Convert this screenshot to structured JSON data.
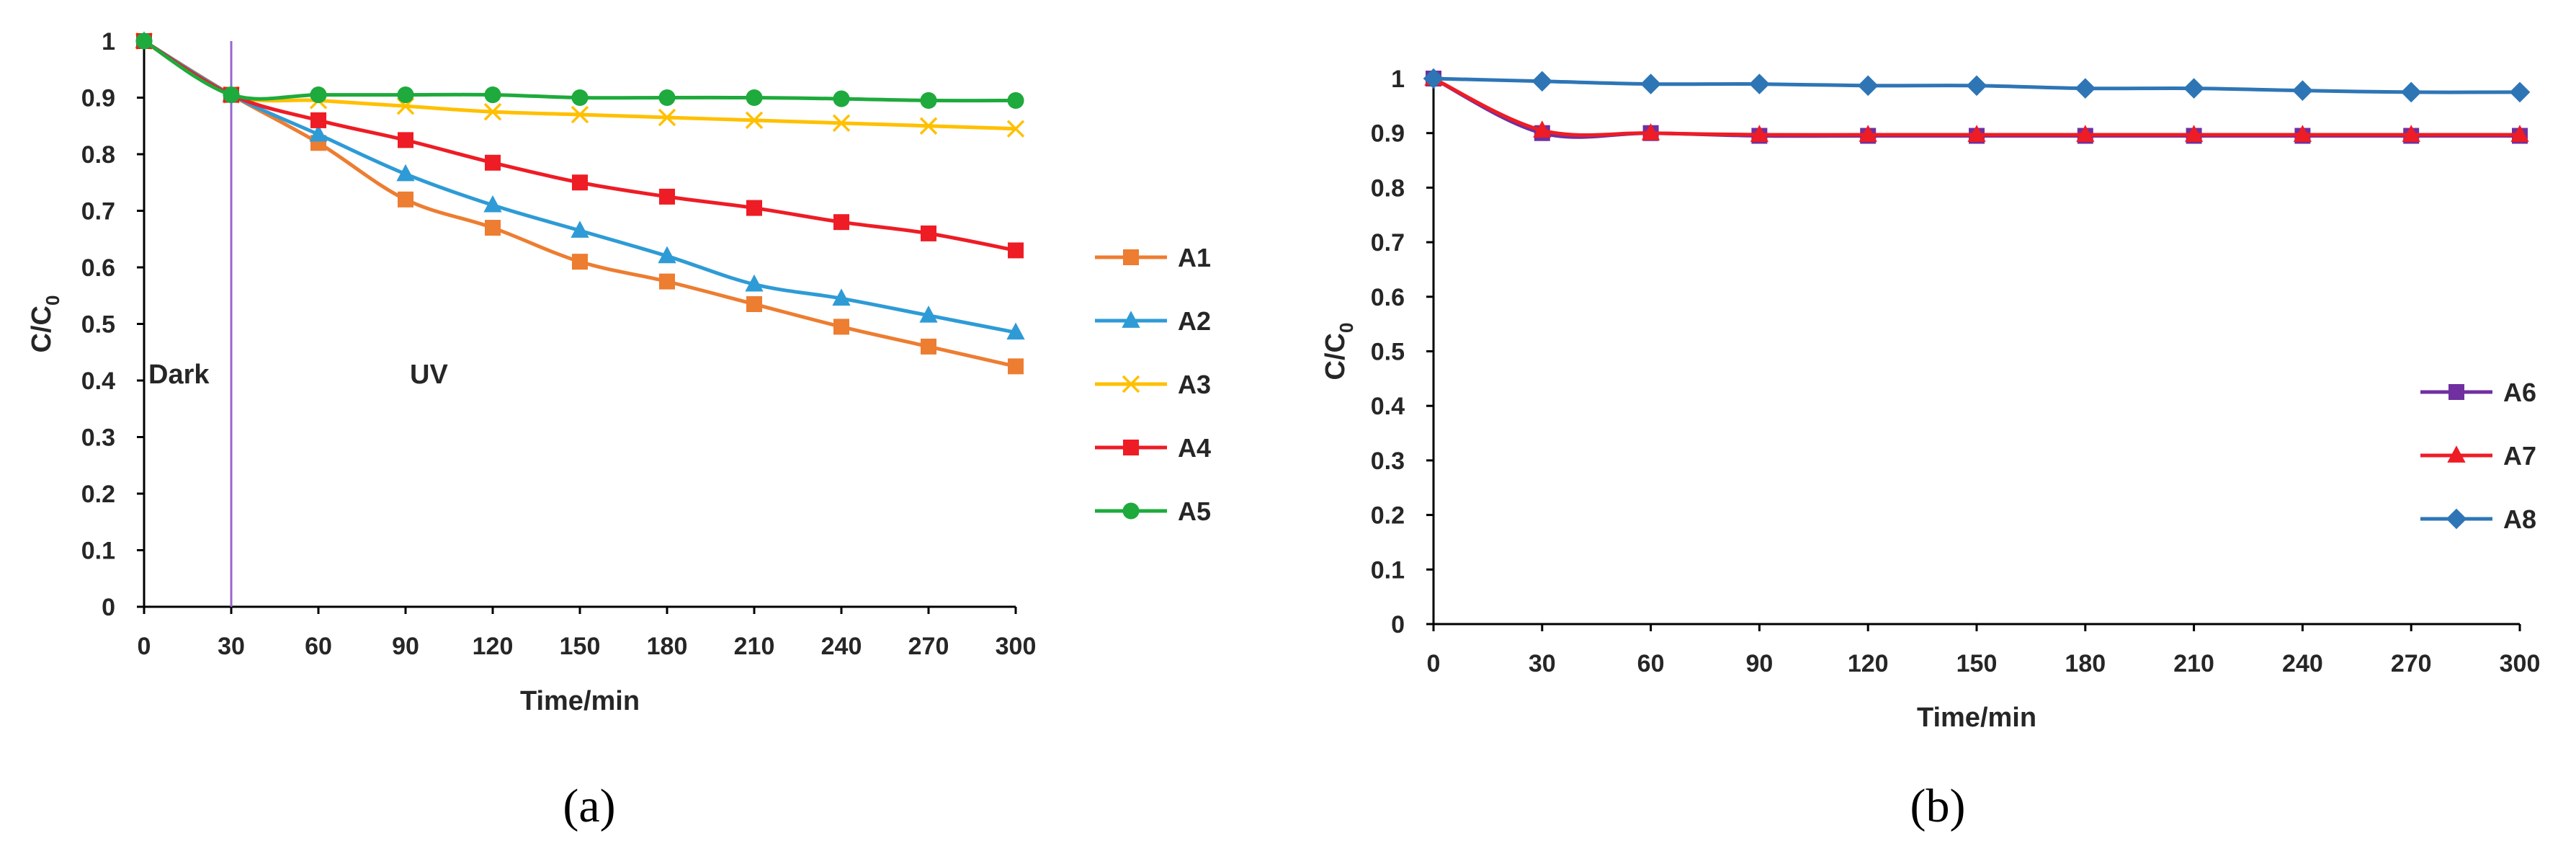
{
  "figure": {
    "panels": [
      {
        "id": "a",
        "caption": "(a)"
      },
      {
        "id": "b",
        "caption": "(b)"
      }
    ]
  },
  "chart_data": [
    {
      "type": "line",
      "panel": "a",
      "title": "",
      "xlabel": "Time/min",
      "ylabel": "C/C0",
      "ylabel_main": "C/C",
      "ylabel_sub": "0",
      "x": [
        0,
        30,
        60,
        90,
        120,
        150,
        180,
        210,
        240,
        270,
        300
      ],
      "xlim": [
        0,
        300
      ],
      "ylim": [
        0,
        1
      ],
      "yticks": [
        "0",
        "0.1",
        "0.2",
        "0.3",
        "0.4",
        "0.5",
        "0.6",
        "0.7",
        "0.8",
        "0.9",
        "1"
      ],
      "xticks": [
        "0",
        "30",
        "60",
        "90",
        "120",
        "150",
        "180",
        "210",
        "240",
        "270",
        "300"
      ],
      "grid": false,
      "legend_position": "right",
      "vline": {
        "x": 30,
        "color": "#9966CC"
      },
      "annotations": [
        {
          "text": "Dark",
          "x": 0,
          "y": 0.41
        },
        {
          "text": "UV",
          "x": 90,
          "y": 0.41
        }
      ],
      "series": [
        {
          "name": "A1",
          "color": "#ED7D31",
          "marker": "square",
          "values": [
            1.0,
            0.905,
            0.82,
            0.72,
            0.67,
            0.61,
            0.575,
            0.535,
            0.495,
            0.46,
            0.425
          ]
        },
        {
          "name": "A2",
          "color": "#2E9BD6",
          "marker": "triangle",
          "values": [
            1.0,
            0.905,
            0.835,
            0.765,
            0.71,
            0.665,
            0.62,
            0.57,
            0.545,
            0.515,
            0.485
          ]
        },
        {
          "name": "A3",
          "color": "#FFC000",
          "marker": "x",
          "values": [
            1.0,
            0.905,
            0.895,
            0.885,
            0.875,
            0.87,
            0.865,
            0.86,
            0.855,
            0.85,
            0.845
          ]
        },
        {
          "name": "A4",
          "color": "#EE1C25",
          "marker": "square",
          "values": [
            1.0,
            0.905,
            0.86,
            0.825,
            0.785,
            0.75,
            0.725,
            0.705,
            0.68,
            0.66,
            0.63
          ]
        },
        {
          "name": "A5",
          "color": "#1EAA3C",
          "marker": "circle",
          "values": [
            1.0,
            0.905,
            0.905,
            0.905,
            0.905,
            0.9,
            0.9,
            0.9,
            0.898,
            0.895,
            0.895
          ]
        }
      ]
    },
    {
      "type": "line",
      "panel": "b",
      "title": "",
      "xlabel": "Time/min",
      "ylabel": "C/C0",
      "ylabel_main": "C/C",
      "ylabel_sub": "0",
      "x": [
        0,
        30,
        60,
        90,
        120,
        150,
        180,
        210,
        240,
        270,
        300
      ],
      "xlim": [
        0,
        300
      ],
      "ylim": [
        0,
        1
      ],
      "yticks": [
        "0",
        "0.1",
        "0.2",
        "0.3",
        "0.4",
        "0.5",
        "0.6",
        "0.7",
        "0.8",
        "0.9",
        "1"
      ],
      "xticks": [
        "0",
        "30",
        "60",
        "90",
        "120",
        "150",
        "180",
        "210",
        "240",
        "270",
        "300"
      ],
      "grid": false,
      "legend_position": "right",
      "series": [
        {
          "name": "A6",
          "color": "#7030A0",
          "marker": "square",
          "values": [
            1.0,
            0.9,
            0.9,
            0.895,
            0.895,
            0.895,
            0.895,
            0.895,
            0.895,
            0.895,
            0.895
          ]
        },
        {
          "name": "A7",
          "color": "#EE1C25",
          "marker": "triangle",
          "values": [
            1.0,
            0.905,
            0.9,
            0.897,
            0.897,
            0.897,
            0.897,
            0.897,
            0.897,
            0.897,
            0.897
          ]
        },
        {
          "name": "A8",
          "color": "#2E75B6",
          "marker": "diamond",
          "values": [
            1.0,
            0.995,
            0.99,
            0.99,
            0.987,
            0.987,
            0.982,
            0.982,
            0.978,
            0.975,
            0.975
          ]
        }
      ]
    }
  ]
}
